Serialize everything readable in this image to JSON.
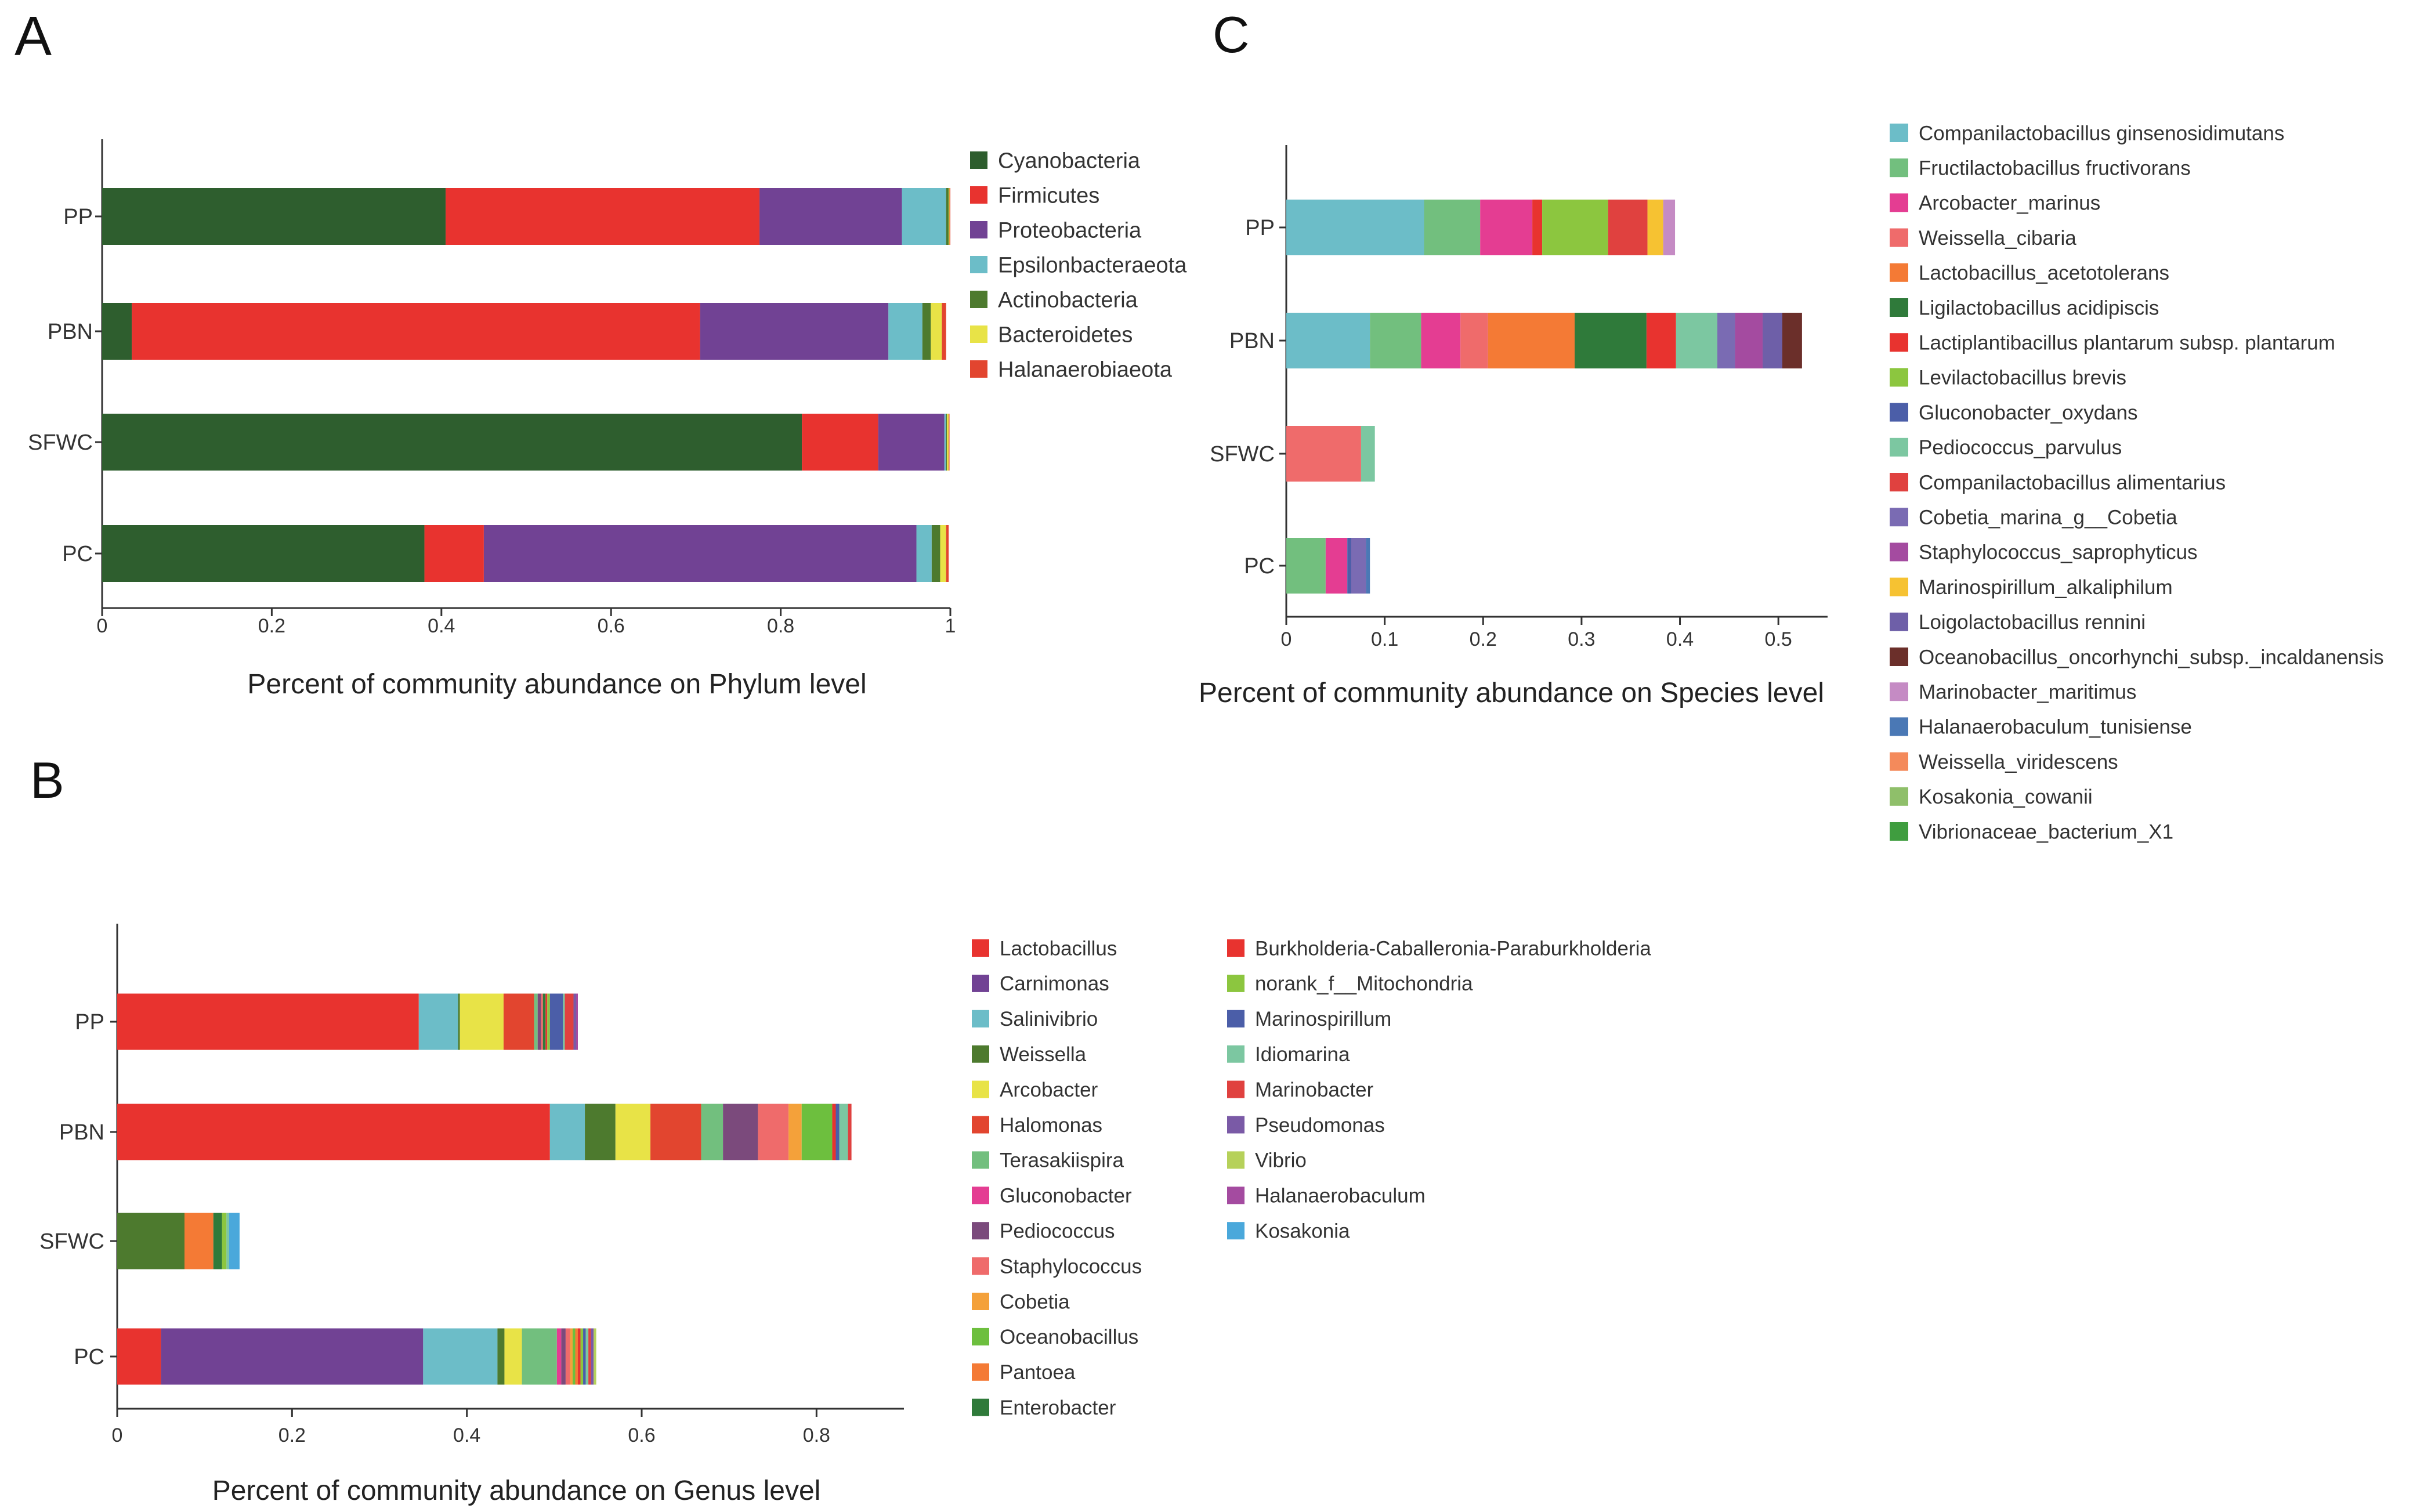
{
  "panels": [
    {
      "letter": "A",
      "chart_data": {
        "type": "bar",
        "orientation": "horizontal",
        "stacked": true,
        "title": "",
        "xlabel": "Percent of community abundance on Phylum level",
        "ylabel": "",
        "xlim": [
          0,
          1
        ],
        "xticks": [
          0,
          0.2,
          0.4,
          0.6,
          0.8,
          1
        ],
        "xtick_labels": [
          "0",
          "0.2",
          "0.4",
          "0.6",
          "0.8",
          "1"
        ],
        "categories": [
          "PP",
          "PBN",
          "SFWC",
          "PC"
        ],
        "legend_position": "right",
        "series": [
          {
            "name": "Cyanobacteria",
            "color": "#2e5e2e",
            "values": [
              0.405,
              0.035,
              0.825,
              0.38
            ]
          },
          {
            "name": "Firmicutes",
            "color": "#e8332f",
            "values": [
              0.37,
              0.67,
              0.09,
              0.07
            ]
          },
          {
            "name": "Proteobacteria",
            "color": "#714294",
            "values": [
              0.168,
              0.222,
              0.078,
              0.51
            ]
          },
          {
            "name": "Epsilonbacteraeota",
            "color": "#6cbdc8",
            "values": [
              0.052,
              0.04,
              0.002,
              0.018
            ]
          },
          {
            "name": "Actinobacteria",
            "color": "#4d7a2e",
            "values": [
              0.003,
              0.01,
              0.001,
              0.01
            ]
          },
          {
            "name": "Bacteroidetes",
            "color": "#e8e347",
            "values": [
              0.001,
              0.013,
              0.002,
              0.007
            ]
          },
          {
            "name": "Halanaerobiaeota",
            "color": "#e2452f",
            "values": [
              0.001,
              0.005,
              0.001,
              0.003
            ]
          }
        ]
      }
    },
    {
      "letter": "B",
      "chart_data": {
        "type": "bar",
        "orientation": "horizontal",
        "stacked": true,
        "title": "",
        "xlabel": "Percent of community abundance on Genus level",
        "ylabel": "",
        "xlim": [
          0,
          0.9
        ],
        "xticks": [
          0,
          0.2,
          0.4,
          0.6,
          0.8
        ],
        "xtick_labels": [
          "0",
          "0.2",
          "0.4",
          "0.6",
          "0.8"
        ],
        "categories": [
          "PP",
          "PBN",
          "SFWC",
          "PC"
        ],
        "legend_position": "right",
        "series": [
          {
            "name": "Lactobacillus",
            "color": "#e8332f",
            "values": [
              0.345,
              0.495,
              0.0,
              0.05
            ]
          },
          {
            "name": "Carnimonas",
            "color": "#714294",
            "values": [
              0.0,
              0.0,
              0.0,
              0.3
            ]
          },
          {
            "name": "Salinivibrio",
            "color": "#6cbdc8",
            "values": [
              0.045,
              0.04,
              0.0,
              0.085
            ]
          },
          {
            "name": "Weissella",
            "color": "#4d7a2e",
            "values": [
              0.002,
              0.035,
              0.077,
              0.008
            ]
          },
          {
            "name": "Arcobacter",
            "color": "#e8e347",
            "values": [
              0.05,
              0.04,
              0.0,
              0.02
            ]
          },
          {
            "name": "Halomonas",
            "color": "#e2452f",
            "values": [
              0.035,
              0.058,
              0.0,
              0.0
            ]
          },
          {
            "name": "Terasakiispira",
            "color": "#72bf7e",
            "values": [
              0.004,
              0.025,
              0.0,
              0.04
            ]
          },
          {
            "name": "Gluconobacter",
            "color": "#e43d92",
            "values": [
              0.0,
              0.0,
              0.0,
              0.005
            ]
          },
          {
            "name": "Pediococcus",
            "color": "#7b4a7c",
            "values": [
              0.004,
              0.04,
              0.0,
              0.005
            ]
          },
          {
            "name": "Staphylococcus",
            "color": "#ef6b6b",
            "values": [
              0.002,
              0.035,
              0.0,
              0.005
            ]
          },
          {
            "name": "Cobetia",
            "color": "#f4a13a",
            "values": [
              0.0,
              0.015,
              0.0,
              0.003
            ]
          },
          {
            "name": "Oceanobacillus",
            "color": "#6dbf3e",
            "values": [
              0.0,
              0.035,
              0.0,
              0.003
            ]
          },
          {
            "name": "Pantoea",
            "color": "#f47a35",
            "values": [
              0.0,
              0.0,
              0.033,
              0.003
            ]
          },
          {
            "name": "Enterobacter",
            "color": "#2f7a3a",
            "values": [
              0.003,
              0.0,
              0.01,
              0.0
            ]
          },
          {
            "name": "Burkholderia-Caballeronia-Paraburkholderia",
            "color": "#e8332f",
            "values": [
              0.002,
              0.004,
              0.0,
              0.003
            ]
          },
          {
            "name": "norank_f__Mitochondria",
            "color": "#8cc63f",
            "values": [
              0.003,
              0.0,
              0.005,
              0.003
            ]
          },
          {
            "name": "Marinospirillum",
            "color": "#4b5ea8",
            "values": [
              0.015,
              0.004,
              0.0,
              0.003
            ]
          },
          {
            "name": "Idiomarina",
            "color": "#7cc7a1",
            "values": [
              0.002,
              0.01,
              0.003,
              0.003
            ]
          },
          {
            "name": "Marinobacter",
            "color": "#e0413f",
            "values": [
              0.01,
              0.004,
              0.0,
              0.003
            ]
          },
          {
            "name": "Pseudomonas",
            "color": "#7a5aa6",
            "values": [
              0.003,
              0.0,
              0.0,
              0.003
            ]
          },
          {
            "name": "Vibrio",
            "color": "#b6d15a",
            "values": [
              0.0,
              0.0,
              0.0,
              0.003
            ]
          },
          {
            "name": "Halanaerobaculum",
            "color": "#a44ba0",
            "values": [
              0.002,
              0.0,
              0.0,
              0.0
            ]
          },
          {
            "name": "Kosakonia",
            "color": "#4aa8db",
            "values": [
              0.0,
              0.0,
              0.012,
              0.0
            ]
          }
        ]
      }
    },
    {
      "letter": "C",
      "chart_data": {
        "type": "bar",
        "orientation": "horizontal",
        "stacked": true,
        "title": "",
        "xlabel": "Percent of community abundance on Species level",
        "ylabel": "",
        "xlim": [
          0,
          0.55
        ],
        "xticks": [
          0,
          0.1,
          0.2,
          0.3,
          0.4,
          0.5
        ],
        "xtick_labels": [
          "0",
          "0.1",
          "0.2",
          "0.3",
          "0.4",
          "0.5"
        ],
        "categories": [
          "PP",
          "PBN",
          "SFWC",
          "PC"
        ],
        "legend_position": "right",
        "series": [
          {
            "name": "Companilactobacillus ginsenosidimutans",
            "color": "#6cbdc8",
            "values": [
              0.14,
              0.085,
              0.0,
              0.0
            ]
          },
          {
            "name": "Fructilactobacillus fructivorans",
            "color": "#72bf7e",
            "values": [
              0.057,
              0.052,
              0.0,
              0.04
            ]
          },
          {
            "name": "Arcobacter_marinus",
            "color": "#e43d92",
            "values": [
              0.053,
              0.04,
              0.0,
              0.022
            ]
          },
          {
            "name": "Weissella_cibaria",
            "color": "#ef6b6b",
            "values": [
              0.0,
              0.028,
              0.076,
              0.0
            ]
          },
          {
            "name": "Lactobacillus_acetotolerans",
            "color": "#f47a35",
            "values": [
              0.0,
              0.088,
              0.0,
              0.0
            ]
          },
          {
            "name": "Ligilactobacillus acidipiscis",
            "color": "#2f7a3a",
            "values": [
              0.0,
              0.073,
              0.0,
              0.0
            ]
          },
          {
            "name": "Lactiplantibacillus plantarum subsp. plantarum",
            "color": "#e8332f",
            "values": [
              0.01,
              0.03,
              0.0,
              0.0
            ]
          },
          {
            "name": "Levilactobacillus brevis",
            "color": "#8cc63f",
            "values": [
              0.067,
              0.0,
              0.0,
              0.0
            ]
          },
          {
            "name": "Gluconobacter_oxydans",
            "color": "#4b5ea8",
            "values": [
              0.0,
              0.0,
              0.0,
              0.004
            ]
          },
          {
            "name": "Pediococcus_parvulus",
            "color": "#7cc7a1",
            "values": [
              0.0,
              0.042,
              0.014,
              0.0
            ]
          },
          {
            "name": "Companilactobacillus alimentarius",
            "color": "#e0413f",
            "values": [
              0.04,
              0.0,
              0.0,
              0.0
            ]
          },
          {
            "name": "Cobetia_marina_g__Cobetia",
            "color": "#7a6bb3",
            "values": [
              0.0,
              0.018,
              0.0,
              0.015
            ]
          },
          {
            "name": "Staphylococcus_saprophyticus",
            "color": "#a44ba0",
            "values": [
              0.0,
              0.028,
              0.0,
              0.0
            ]
          },
          {
            "name": "Marinospirillum_alkaliphilum",
            "color": "#f6c232",
            "values": [
              0.016,
              0.0,
              0.0,
              0.0
            ]
          },
          {
            "name": "Loigolactobacillus rennini",
            "color": "#6e5fa8",
            "values": [
              0.0,
              0.02,
              0.0,
              0.0
            ]
          },
          {
            "name": "Oceanobacillus_oncorhynchi_subsp._incaldanensis",
            "color": "#6b2f2a",
            "values": [
              0.0,
              0.02,
              0.0,
              0.0
            ]
          },
          {
            "name": "Marinobacter_maritimus",
            "color": "#c58bc4",
            "values": [
              0.012,
              0.0,
              0.0,
              0.0
            ]
          },
          {
            "name": "Halanaerobaculum_tunisiense",
            "color": "#4a78b5",
            "values": [
              0.0,
              0.0,
              0.0,
              0.004
            ]
          },
          {
            "name": "Weissella_viridescens",
            "color": "#f48a5b",
            "values": [
              0.0,
              0.0,
              0.0,
              0.0
            ]
          },
          {
            "name": "Kosakonia_cowanii",
            "color": "#8fbf6a",
            "values": [
              0.0,
              0.0,
              0.0,
              0.0
            ]
          },
          {
            "name": "Vibrionaceae_bacterium_X1",
            "color": "#3f9d3f",
            "values": [
              0.0,
              0.0,
              0.0,
              0.0
            ]
          }
        ]
      }
    }
  ]
}
